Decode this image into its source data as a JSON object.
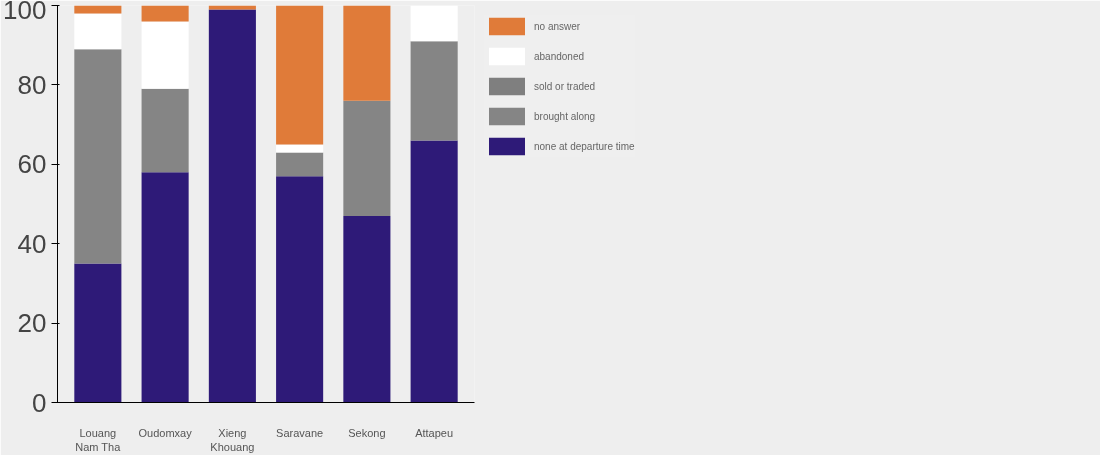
{
  "chart_data": {
    "type": "bar",
    "stacked": true,
    "categories": [
      "Louang\nNam Tha",
      "Oudomxay",
      "Xieng\nKhouang",
      "Saravane",
      "Sekong",
      "Attapeu"
    ],
    "series": [
      {
        "name": "none at departure time",
        "color": "#2e1a78",
        "values": [
          35,
          58,
          99,
          57,
          47,
          66
        ]
      },
      {
        "name": "brought along",
        "color": "#858585",
        "values": [
          54,
          21,
          0,
          6,
          29,
          25
        ]
      },
      {
        "name": "sold or traded",
        "color": "#7f7f7f",
        "values": [
          0,
          0,
          0,
          0,
          0,
          0
        ]
      },
      {
        "name": "abandoned",
        "color": "#ffffff",
        "values": [
          9,
          17,
          0,
          2,
          0,
          9
        ]
      },
      {
        "name": "no answer",
        "color": "#e07b39",
        "values": [
          2,
          4,
          1,
          35,
          24,
          0
        ]
      }
    ],
    "ylim": [
      0,
      100
    ],
    "yticks": [
      0,
      20,
      40,
      60,
      80,
      100
    ],
    "grid": false,
    "legend": "top right"
  }
}
